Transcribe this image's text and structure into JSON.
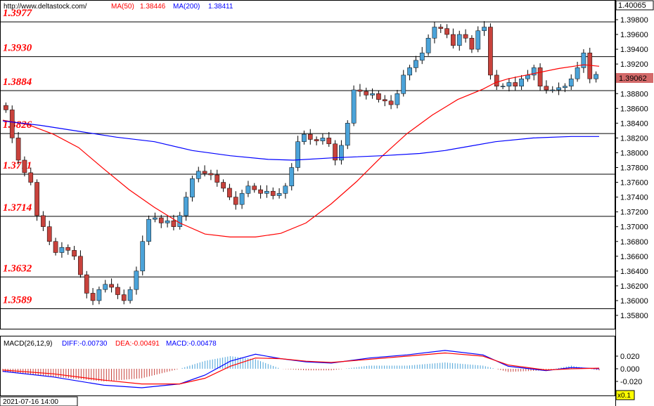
{
  "header": {
    "site": "http://www.deltastock.com/",
    "ma50_label": "MA(50)",
    "ma50_value": "1.38446",
    "ma200_label": "MA(200)",
    "ma200_value": "1.38411",
    "last_price_box": "1.40065",
    "current_price_box": "1.39062"
  },
  "macd_header": {
    "title": "MACD(26,12,9)",
    "diff": "DIFF:-0.00730",
    "dea": "DEA:-0.00491",
    "macd": "MACD:-0.00478"
  },
  "footer": {
    "date": "2021-07-16 14:00",
    "zoom": "x0.1"
  },
  "colors": {
    "bull": "#4ba3d9",
    "bear": "#c8423c",
    "ma50": "#ff0000",
    "ma200": "#0000ff",
    "level_text": "#ff0000"
  },
  "chart_data": [
    {
      "type": "candlestick",
      "ylim": [
        1.3565,
        1.4007
      ],
      "price_ticks": [
        "1.39800",
        "1.39600",
        "1.39400",
        "1.39200",
        "1.39000",
        "1.38800",
        "1.38600",
        "1.38400",
        "1.38200",
        "1.38000",
        "1.37800",
        "1.37600",
        "1.37400",
        "1.37200",
        "1.37000",
        "1.36800",
        "1.36600",
        "1.36400",
        "1.36200",
        "1.36000",
        "1.35800"
      ],
      "levels": [
        "1.3977",
        "1.3930",
        "1.3884",
        "1.3826",
        "1.3771",
        "1.3714",
        "1.3632",
        "1.3589"
      ],
      "series": [
        {
          "name": "MA(50)",
          "points": [
            [
              0,
              1.3844
            ],
            [
              10,
              1.3838
            ],
            [
              20,
              1.3825
            ],
            [
              30,
              1.3807
            ],
            [
              40,
              1.3778
            ],
            [
              50,
              1.375
            ],
            [
              60,
              1.3726
            ],
            [
              70,
              1.3705
            ],
            [
              80,
              1.369
            ],
            [
              90,
              1.3686
            ],
            [
              100,
              1.3686
            ],
            [
              110,
              1.3691
            ],
            [
              120,
              1.3705
            ],
            [
              130,
              1.3731
            ],
            [
              140,
              1.3761
            ],
            [
              150,
              1.3795
            ],
            [
              160,
              1.3826
            ],
            [
              170,
              1.3851
            ],
            [
              180,
              1.3872
            ],
            [
              190,
              1.3886
            ],
            [
              195,
              1.3895
            ],
            [
              200,
              1.39
            ],
            [
              210,
              1.3907
            ],
            [
              220,
              1.3914
            ],
            [
              230,
              1.3919
            ],
            [
              236,
              1.3917
            ]
          ]
        },
        {
          "name": "MA(200)",
          "points": [
            [
              0,
              1.3843
            ],
            [
              15,
              1.3837
            ],
            [
              30,
              1.3829
            ],
            [
              45,
              1.3821
            ],
            [
              60,
              1.3815
            ],
            [
              75,
              1.3803
            ],
            [
              90,
              1.3796
            ],
            [
              105,
              1.3791
            ],
            [
              115,
              1.379
            ],
            [
              130,
              1.3793
            ],
            [
              150,
              1.3796
            ],
            [
              165,
              1.3799
            ],
            [
              175,
              1.3803
            ],
            [
              185,
              1.3809
            ],
            [
              195,
              1.3815
            ],
            [
              210,
              1.382
            ],
            [
              225,
              1.3822
            ],
            [
              236,
              1.3822
            ]
          ]
        }
      ],
      "candles_approx": [
        1.3858,
        1.382,
        1.379,
        1.3773,
        1.376,
        1.3715,
        1.37,
        1.368,
        1.3665,
        1.3672,
        1.3668,
        1.366,
        1.3635,
        1.361,
        1.36,
        1.3615,
        1.3622,
        1.3618,
        1.3608,
        1.36,
        1.3615,
        1.364,
        1.368,
        1.371,
        1.3712,
        1.3705,
        1.3708,
        1.37,
        1.3715,
        1.374,
        1.3765,
        1.3775,
        1.3772,
        1.377,
        1.376,
        1.3752,
        1.374,
        1.373,
        1.3745,
        1.3755,
        1.375,
        1.3745,
        1.3748,
        1.3742,
        1.3745,
        1.3755,
        1.378,
        1.3815,
        1.3825,
        1.3818,
        1.3816,
        1.382,
        1.3812,
        1.379,
        1.381,
        1.384,
        1.3885,
        1.3883,
        1.3878,
        1.388,
        1.3872,
        1.387,
        1.3865,
        1.388,
        1.3905,
        1.3915,
        1.3925,
        1.3935,
        1.3955,
        1.397,
        1.3968,
        1.396,
        1.3945,
        1.396,
        1.3955,
        1.394,
        1.3965,
        1.397,
        1.3905,
        1.389,
        1.389,
        1.3895,
        1.389,
        1.39,
        1.3905,
        1.3915,
        1.389,
        1.3885,
        1.3885,
        1.3888,
        1.389,
        1.39,
        1.3915,
        1.3935,
        1.39,
        1.3906
      ]
    },
    {
      "type": "macd",
      "ylim": [
        -0.04,
        0.04
      ],
      "ticks": [
        "0.020",
        "0.000",
        "-0.020"
      ],
      "series": [
        {
          "name": "DIFF",
          "points": [
            [
              0,
              -0.004
            ],
            [
              20,
              -0.013
            ],
            [
              40,
              -0.026
            ],
            [
              55,
              -0.03
            ],
            [
              70,
              -0.024
            ],
            [
              80,
              -0.01
            ],
            [
              90,
              0.012
            ],
            [
              100,
              0.023
            ],
            [
              110,
              0.016
            ],
            [
              120,
              0.011
            ],
            [
              130,
              0.009
            ],
            [
              145,
              0.017
            ],
            [
              160,
              0.022
            ],
            [
              175,
              0.029
            ],
            [
              190,
              0.022
            ],
            [
              200,
              0.004
            ],
            [
              215,
              -0.003
            ],
            [
              225,
              0.002
            ],
            [
              236,
              0.0
            ]
          ]
        },
        {
          "name": "DEA",
          "points": [
            [
              0,
              -0.002
            ],
            [
              20,
              -0.008
            ],
            [
              40,
              -0.018
            ],
            [
              55,
              -0.024
            ],
            [
              70,
              -0.024
            ],
            [
              80,
              -0.015
            ],
            [
              90,
              0.004
            ],
            [
              100,
              0.017
            ],
            [
              110,
              0.016
            ],
            [
              120,
              0.012
            ],
            [
              130,
              0.01
            ],
            [
              145,
              0.015
            ],
            [
              160,
              0.02
            ],
            [
              175,
              0.025
            ],
            [
              190,
              0.02
            ],
            [
              200,
              0.006
            ],
            [
              215,
              -0.002
            ],
            [
              225,
              0.0
            ],
            [
              236,
              0.001
            ]
          ]
        }
      ]
    }
  ]
}
